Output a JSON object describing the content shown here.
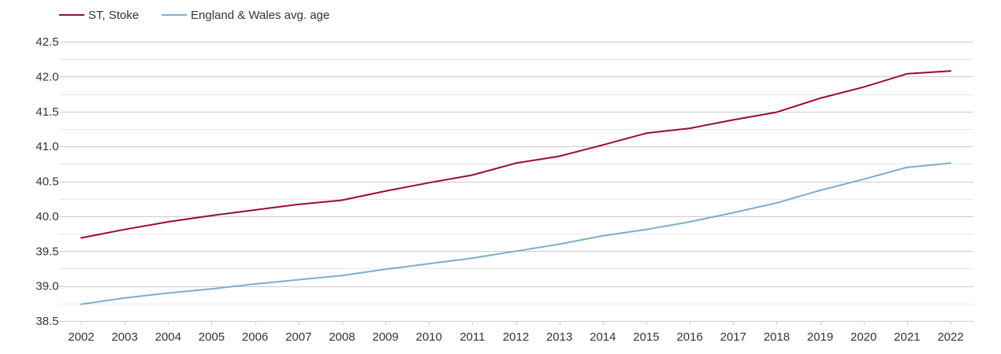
{
  "chart_data": {
    "type": "line",
    "title": "",
    "xlabel": "",
    "ylabel": "",
    "x": [
      "2002",
      "2003",
      "2004",
      "2005",
      "2006",
      "2007",
      "2008",
      "2009",
      "2010",
      "2011",
      "2012",
      "2013",
      "2014",
      "2015",
      "2016",
      "2017",
      "2018",
      "2019",
      "2020",
      "2021",
      "2022"
    ],
    "ylim": [
      38.5,
      42.5
    ],
    "yticks": [
      "38.5",
      "39.0",
      "39.5",
      "40.0",
      "40.5",
      "41.0",
      "41.5",
      "42.0",
      "42.5"
    ],
    "grid": true,
    "legend_position": "top-left",
    "series": [
      {
        "name": "ST, Stoke",
        "color": "#9b0a32",
        "values": [
          39.69,
          39.81,
          39.92,
          40.01,
          40.09,
          40.17,
          40.23,
          40.36,
          40.48,
          40.59,
          40.76,
          40.86,
          41.02,
          41.19,
          41.26,
          41.38,
          41.49,
          41.69,
          41.85,
          42.04,
          42.08
        ]
      },
      {
        "name": "England & Wales avg. age",
        "color": "#7aaed0",
        "values": [
          38.74,
          38.83,
          38.9,
          38.96,
          39.03,
          39.09,
          39.15,
          39.24,
          39.32,
          39.4,
          39.5,
          39.6,
          39.72,
          39.81,
          39.92,
          40.05,
          40.19,
          40.37,
          40.53,
          40.7,
          40.76
        ]
      }
    ]
  }
}
